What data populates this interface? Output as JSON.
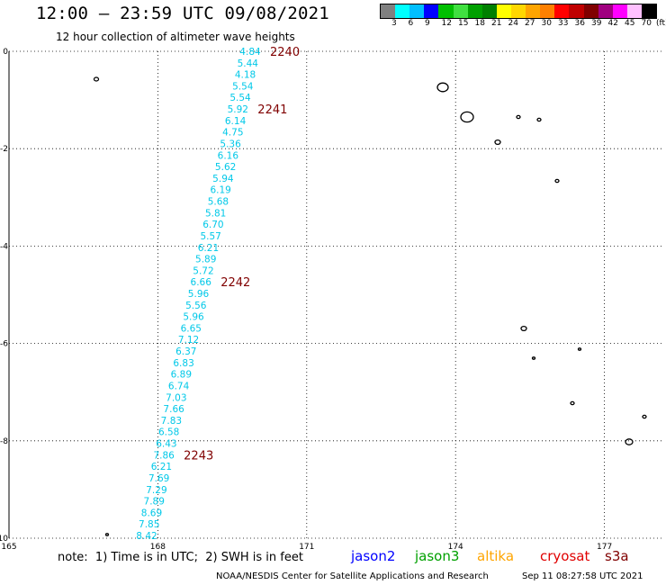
{
  "header": {
    "title": "12:00 – 23:59 UTC 09/08/2021",
    "subtitle": "12 hour collection of altimeter wave heights"
  },
  "legend": {
    "colors": [
      "#808080",
      "#00ffff",
      "#00bfff",
      "#0000ff",
      "#00bf00",
      "#40e040",
      "#00a000",
      "#008000",
      "#ffff00",
      "#ffd700",
      "#ffa500",
      "#ff8000",
      "#ff0000",
      "#c00000",
      "#800000",
      "#a00080",
      "#ff00ff",
      "#ffc0ff",
      "#000000"
    ],
    "labels": [
      "3",
      "6",
      "9",
      "12",
      "15",
      "18",
      "21",
      "24",
      "27",
      "30",
      "33",
      "36",
      "39",
      "42",
      "45",
      "70"
    ],
    "unit": "(ft)"
  },
  "map": {
    "x_range": [
      165,
      178.15
    ],
    "y_range": [
      -10,
      0
    ],
    "x_ticks": [
      "165",
      "168",
      "171",
      "174",
      "177"
    ],
    "y_ticks": [
      "0",
      "-2",
      "-4",
      "-6",
      "-8",
      "-10"
    ],
    "grid": "dotted",
    "wave_heights": [
      "4.84",
      "5.44",
      "4.18",
      "5.54",
      "5.54",
      "5.92",
      "6.14",
      "4.75",
      "5.36",
      "6.16",
      "5.62",
      "5.94",
      "6.19",
      "5.68",
      "5.81",
      "6.70",
      "5.57",
      "6.21",
      "5.89",
      "5.72",
      "6.66",
      "5.96",
      "5.56",
      "5.96",
      "6.65",
      "7.12",
      "6.37",
      "6.83",
      "6.89",
      "6.74",
      "7.03",
      "7.66",
      "7.83",
      "6.58",
      "6.43",
      "7.86",
      "6.21",
      "7.69",
      "7.29",
      "7.89",
      "8.69",
      "7.85",
      "8.42"
    ],
    "time_labels": [
      {
        "text": "2240",
        "index": 0
      },
      {
        "text": "2241",
        "index": 5
      },
      {
        "text": "2242",
        "index": 20
      },
      {
        "text": "2243",
        "index": 35
      }
    ],
    "track_color": "#00c8e8",
    "time_color": "#800000"
  },
  "footer": {
    "note": "note:  1) Time is in UTC;  2) SWH is in feet",
    "satellites": [
      {
        "name": "jason2",
        "color": "#0000ff"
      },
      {
        "name": "jason3",
        "color": "#00a000"
      },
      {
        "name": "altika",
        "color": "#ffa500"
      },
      {
        "name": "cryosat",
        "color": "#e00000"
      },
      {
        "name": "s3a",
        "color": "#800000"
      }
    ],
    "credit": "NOAA/NESDIS Center for Satellite Applications and Research",
    "stamp": "Sep 11 08:27:58 UTC 2021"
  }
}
